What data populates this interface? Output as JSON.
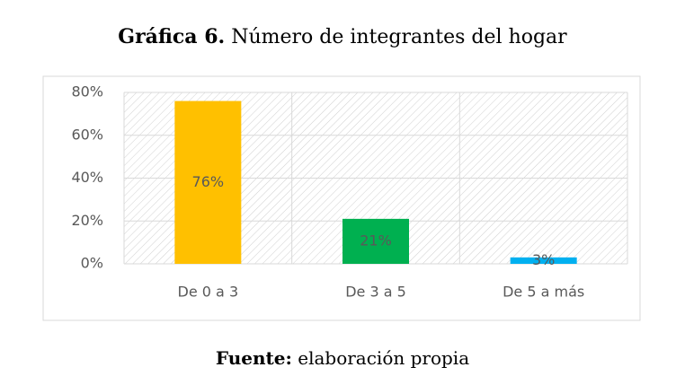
{
  "chart_data": {
    "type": "bar",
    "title_label": "Gráfica 6.",
    "title": "Número de integrantes del hogar",
    "categories": [
      "De 0 a 3",
      "De 3 a 5",
      "De 5 a más"
    ],
    "values": [
      76,
      21,
      3
    ],
    "value_labels": [
      "76%",
      "21%",
      "3%"
    ],
    "colors": [
      "#ffc000",
      "#00b050",
      "#00b0f0"
    ],
    "ylim": [
      0,
      80
    ],
    "yticks": [
      {
        "value": 0,
        "label": "0%"
      },
      {
        "value": 20,
        "label": "20%"
      },
      {
        "value": 40,
        "label": "40%"
      },
      {
        "value": 60,
        "label": "60%"
      },
      {
        "value": 80,
        "label": "80%"
      }
    ],
    "grid": true,
    "source_label": "Fuente:",
    "source": "elaboración propia"
  }
}
